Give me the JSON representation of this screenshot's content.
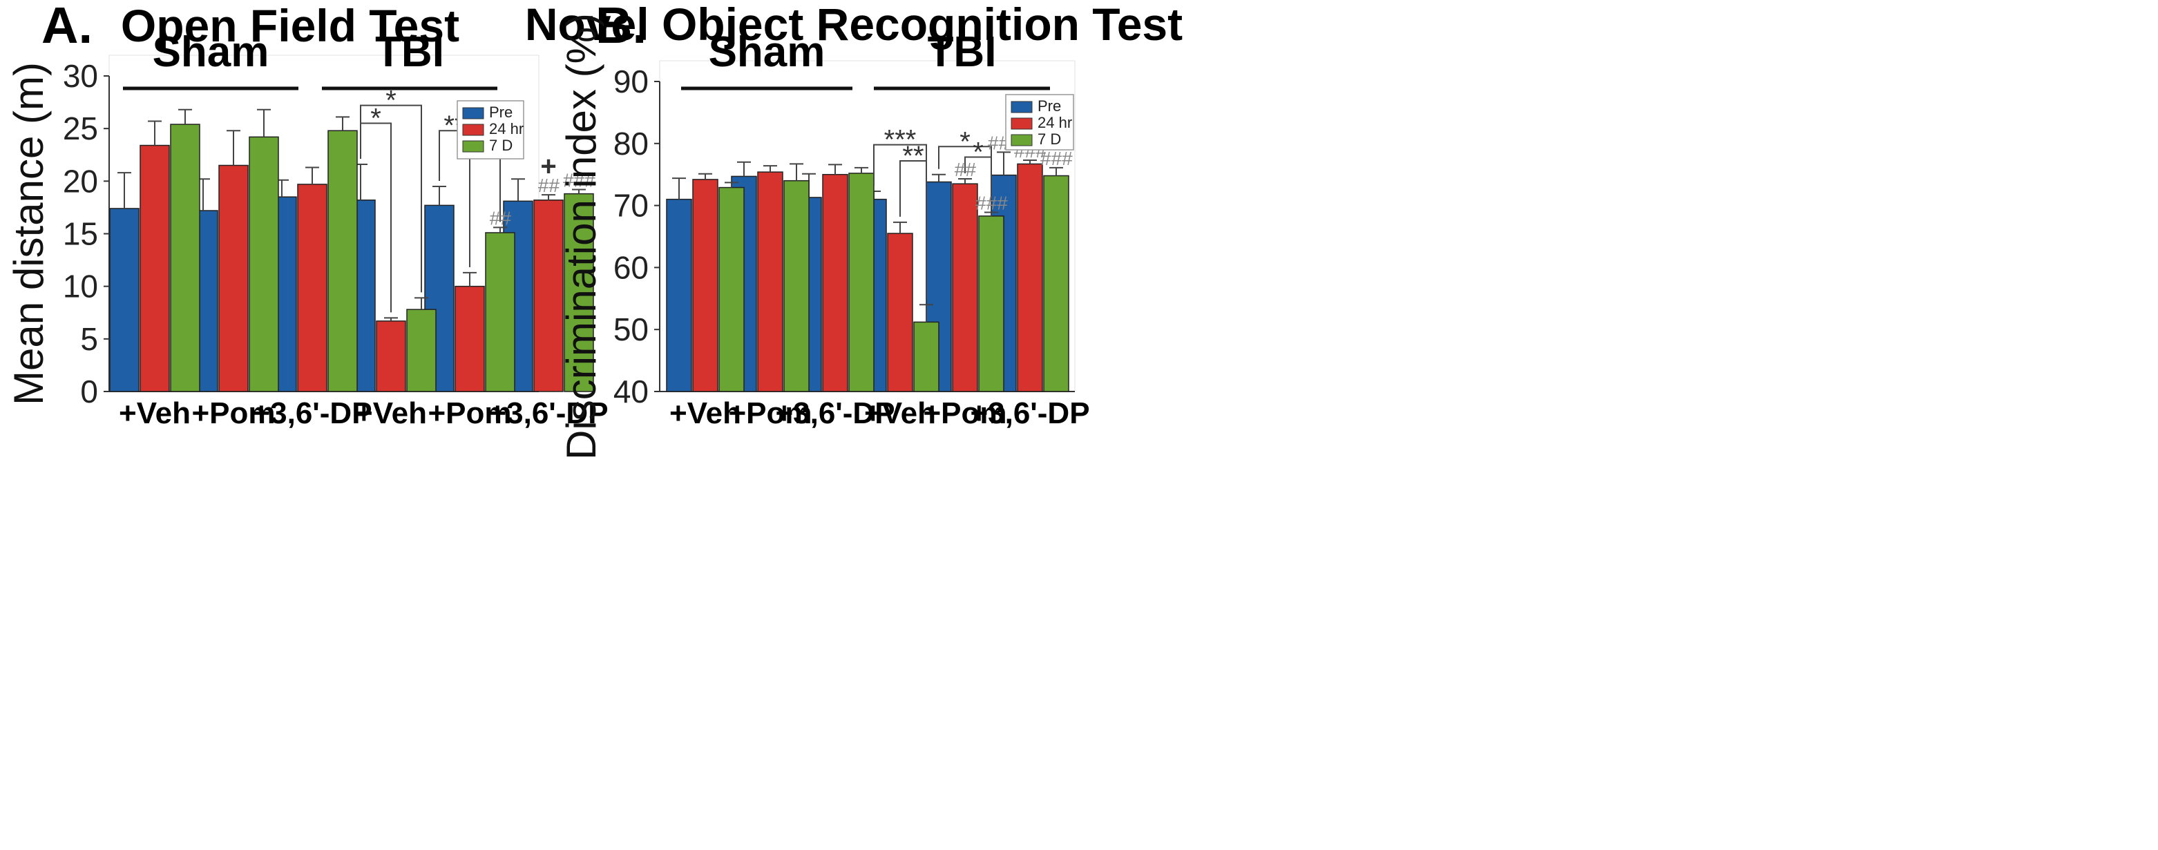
{
  "figure": {
    "panel_letters": [
      "A.",
      "B."
    ],
    "colors": {
      "Pre": "#1f5fa6",
      "24 hr": "#d7332e",
      "7 D": "#6aa534"
    }
  },
  "chart_data": [
    {
      "type": "bar",
      "panel": "A.",
      "title": "Open Field Test",
      "ylabel": "Mean distance (m)",
      "xlabel": "",
      "ylim": [
        0,
        30
      ],
      "yticks": [
        0,
        5,
        10,
        15,
        20,
        25,
        30
      ],
      "grid": false,
      "legend_position": "top-right",
      "groups": [
        {
          "label": "Sham",
          "categories": [
            0,
            1,
            2
          ]
        },
        {
          "label": "TBI",
          "categories": [
            3,
            4,
            5
          ]
        }
      ],
      "categories": [
        "+Veh",
        "+Pom",
        "+3,6'-DP",
        "+Veh",
        "+Pom",
        "+3,6'-DP"
      ],
      "series": [
        {
          "name": "Pre",
          "values": [
            17.4,
            17.2,
            18.5,
            18.2,
            17.7,
            18.1
          ],
          "errors": [
            3.4,
            3.0,
            1.6,
            3.4,
            1.8,
            2.1
          ]
        },
        {
          "name": "24 hr",
          "values": [
            23.4,
            21.5,
            19.7,
            6.7,
            10.0,
            18.2
          ],
          "errors": [
            2.3,
            3.3,
            1.6,
            0.3,
            1.3,
            0.5
          ]
        },
        {
          "name": "7 D",
          "values": [
            25.4,
            24.2,
            24.8,
            7.8,
            15.1,
            18.8
          ],
          "errors": [
            1.4,
            2.6,
            1.3,
            1.1,
            0.5,
            0.4
          ]
        }
      ],
      "brackets": [
        {
          "from": [
            3,
            0
          ],
          "to": [
            3,
            1
          ],
          "label": "*",
          "level": 25.5
        },
        {
          "from": [
            3,
            0
          ],
          "to": [
            3,
            2
          ],
          "label": "*",
          "level": 27.2
        },
        {
          "from": [
            4,
            0
          ],
          "to": [
            4,
            1
          ],
          "label": "**",
          "level": 24.8
        },
        {
          "from": [
            4,
            1
          ],
          "to": [
            4,
            2
          ],
          "label": "*",
          "level": 23.0
        }
      ],
      "bar_marks": [
        {
          "cat": 4,
          "series": 2,
          "label": "##"
        },
        {
          "cat": 5,
          "series": 1,
          "label": "##"
        },
        {
          "cat": 5,
          "series": 2,
          "label": "###"
        },
        {
          "cat": 5,
          "series": 1,
          "label": "+",
          "above": true
        }
      ]
    },
    {
      "type": "bar",
      "panel": "B.",
      "title": "Novel Object Recognition Test",
      "ylabel": "Discrimination index (%)",
      "xlabel": "",
      "ylim": [
        40,
        90
      ],
      "yticks": [
        40,
        50,
        60,
        70,
        80,
        90
      ],
      "grid": false,
      "legend_position": "top-right",
      "groups": [
        {
          "label": "Sham",
          "categories": [
            0,
            1,
            2
          ]
        },
        {
          "label": "TBI",
          "categories": [
            3,
            4,
            5
          ]
        }
      ],
      "categories": [
        "+Veh",
        "+Pom",
        "+3,6'-DP",
        "+Veh",
        "+Pom",
        "+3,6'-DP"
      ],
      "series": [
        {
          "name": "Pre",
          "values": [
            71.0,
            74.7,
            71.3,
            71.0,
            73.8,
            74.9
          ],
          "errors": [
            3.4,
            2.3,
            3.8,
            1.3,
            1.2,
            3.7
          ]
        },
        {
          "name": "24 hr",
          "values": [
            74.2,
            75.4,
            75.0,
            65.5,
            73.5,
            76.7
          ],
          "errors": [
            0.9,
            1.0,
            1.6,
            1.8,
            0.8,
            0.6
          ]
        },
        {
          "name": "7 D",
          "values": [
            72.9,
            74.0,
            75.2,
            51.2,
            68.3,
            74.8
          ],
          "errors": [
            0.8,
            2.7,
            0.9,
            2.8,
            0.6,
            1.3
          ]
        }
      ],
      "brackets": [
        {
          "from": [
            3,
            0
          ],
          "to": [
            3,
            2
          ],
          "label": "***",
          "level": 79.8
        },
        {
          "from": [
            3,
            1
          ],
          "to": [
            3,
            2
          ],
          "label": "**",
          "level": 77.2
        },
        {
          "from": [
            4,
            0
          ],
          "to": [
            4,
            2
          ],
          "label": "*",
          "level": 79.5
        },
        {
          "from": [
            4,
            1
          ],
          "to": [
            4,
            2
          ],
          "label": "*",
          "level": 77.8
        }
      ],
      "bar_marks": [
        {
          "cat": 4,
          "series": 1,
          "label": "##"
        },
        {
          "cat": 4,
          "series": 2,
          "label": "###"
        },
        {
          "cat": 5,
          "series": 0,
          "label": "###"
        },
        {
          "cat": 5,
          "series": 1,
          "label": "###"
        },
        {
          "cat": 5,
          "series": 2,
          "label": "###"
        }
      ]
    }
  ]
}
